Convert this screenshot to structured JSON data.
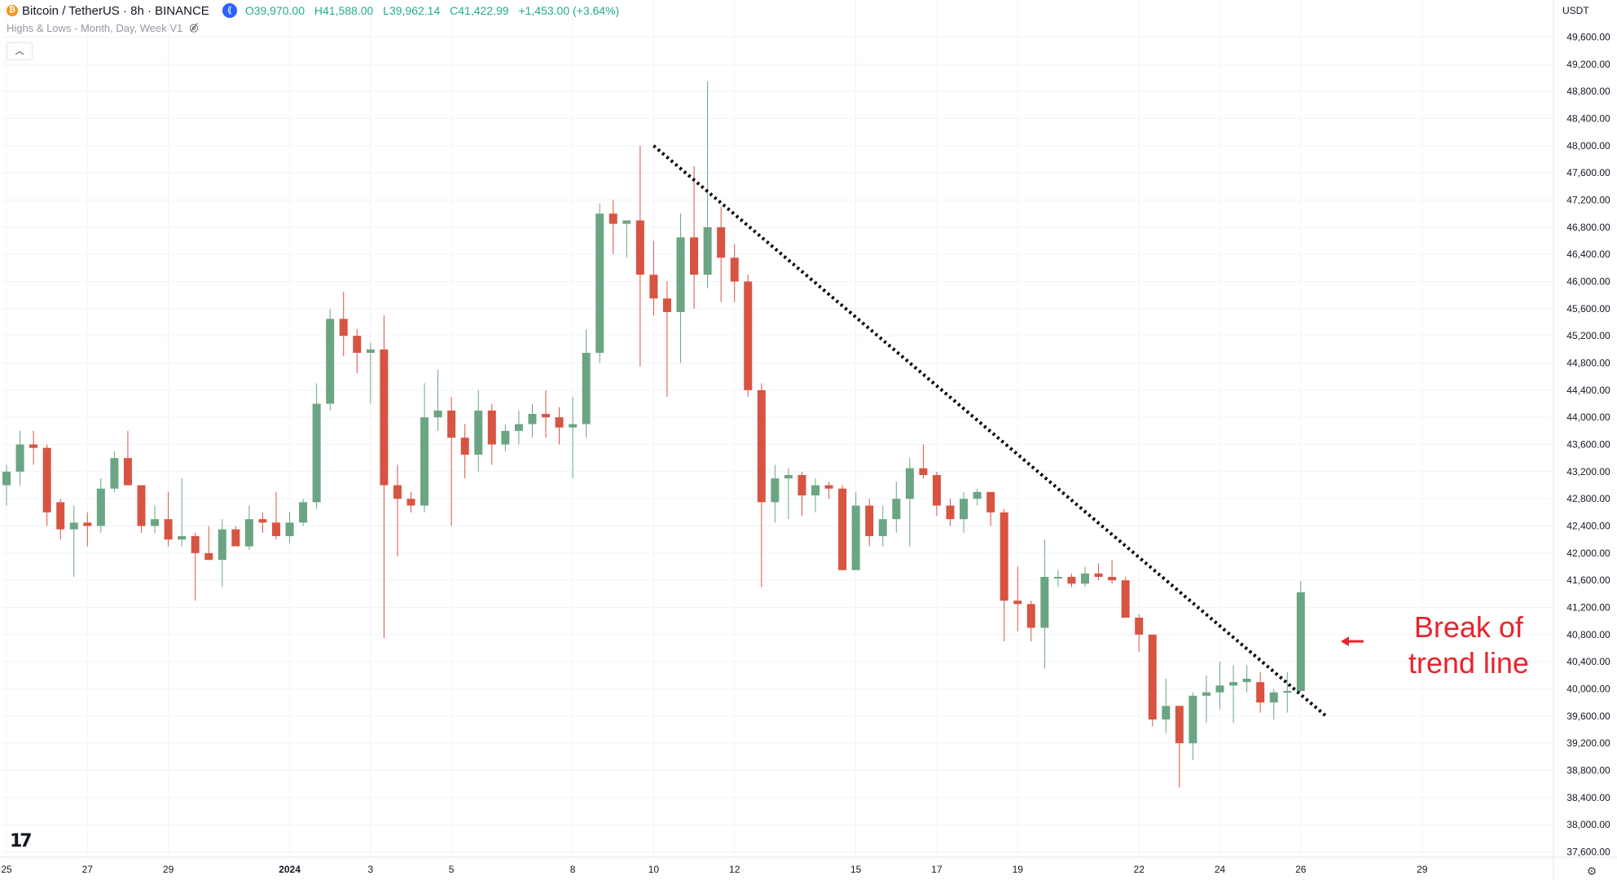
{
  "header": {
    "symbol": "Bitcoin / TetherUS · 8h · BINANCE",
    "open": "O39,970.00",
    "high": "H41,588.00",
    "low": "L39,962.14",
    "close": "C41,422.99",
    "change": "+1,453.00 (+3.64%)"
  },
  "indicator": {
    "label": "Highs & Lows - Month, Day, Week V1"
  },
  "currency": "USDT",
  "colors": {
    "up": "#6ba583",
    "down": "#d75442",
    "grid": "#f0f3fa",
    "annotation": "#e8242c"
  },
  "icons": {
    "coin": "bitcoin-icon",
    "live": "live-icon",
    "eye": "eye-crossed-icon",
    "collapse": "chevron-up-icon",
    "settings": "gear-icon",
    "logo": "tradingview-logo"
  },
  "chart_data": {
    "type": "candlestick",
    "title": "Bitcoin / TetherUS · 8h · BINANCE",
    "ylim": [
      37400,
      50000
    ],
    "y_ticks": [
      37600,
      38000,
      38400,
      38800,
      39200,
      39600,
      40000,
      40400,
      40800,
      41200,
      41600,
      42000,
      42400,
      42800,
      43200,
      43600,
      44000,
      44400,
      44800,
      45200,
      45600,
      46000,
      46400,
      46800,
      47200,
      47600,
      48000,
      48400,
      48800,
      49200,
      49600
    ],
    "y_tick_labels": [
      "37,600.00",
      "38,000.00",
      "38,400.00",
      "38,800.00",
      "39,200.00",
      "39,600.00",
      "40,000.00",
      "40,400.00",
      "40,800.00",
      "41,200.00",
      "41,600.00",
      "42,000.00",
      "42,400.00",
      "42,800.00",
      "43,200.00",
      "43,600.00",
      "44,000.00",
      "44,400.00",
      "44,800.00",
      "45,200.00",
      "45,600.00",
      "46,000.00",
      "46,400.00",
      "46,800.00",
      "47,200.00",
      "47,600.00",
      "48,000.00",
      "48,400.00",
      "48,800.00",
      "49,200.00",
      "49,600.00"
    ],
    "x_ticks": [
      {
        "label": "25",
        "bar": 0
      },
      {
        "label": "27",
        "bar": 6
      },
      {
        "label": "29",
        "bar": 12
      },
      {
        "label": "2024",
        "bar": 21
      },
      {
        "label": "3",
        "bar": 27
      },
      {
        "label": "5",
        "bar": 33
      },
      {
        "label": "8",
        "bar": 42
      },
      {
        "label": "10",
        "bar": 48
      },
      {
        "label": "12",
        "bar": 54
      },
      {
        "label": "15",
        "bar": 63
      },
      {
        "label": "17",
        "bar": 69
      },
      {
        "label": "19",
        "bar": 75
      },
      {
        "label": "22",
        "bar": 84
      },
      {
        "label": "24",
        "bar": 90
      },
      {
        "label": "26",
        "bar": 96
      },
      {
        "label": "29",
        "bar": 105
      }
    ],
    "candles": [
      {
        "o": 43000,
        "h": 43300,
        "l": 42700,
        "c": 43200
      },
      {
        "o": 43200,
        "h": 43800,
        "l": 43000,
        "c": 43600
      },
      {
        "o": 43600,
        "h": 43800,
        "l": 43300,
        "c": 43550
      },
      {
        "o": 43550,
        "h": 43600,
        "l": 42400,
        "c": 42600
      },
      {
        "o": 42750,
        "h": 42800,
        "l": 42200,
        "c": 42350
      },
      {
        "o": 42350,
        "h": 42700,
        "l": 41650,
        "c": 42450
      },
      {
        "o": 42450,
        "h": 42600,
        "l": 42100,
        "c": 42400
      },
      {
        "o": 42400,
        "h": 43100,
        "l": 42300,
        "c": 42950
      },
      {
        "o": 42950,
        "h": 43500,
        "l": 42900,
        "c": 43400
      },
      {
        "o": 43400,
        "h": 43800,
        "l": 43000,
        "c": 43000
      },
      {
        "o": 43000,
        "h": 43000,
        "l": 42300,
        "c": 42400
      },
      {
        "o": 42400,
        "h": 42700,
        "l": 42300,
        "c": 42500
      },
      {
        "o": 42500,
        "h": 42900,
        "l": 42100,
        "c": 42200
      },
      {
        "o": 42200,
        "h": 43100,
        "l": 42100,
        "c": 42250
      },
      {
        "o": 42250,
        "h": 42300,
        "l": 41300,
        "c": 42000
      },
      {
        "o": 42000,
        "h": 42400,
        "l": 41900,
        "c": 41900
      },
      {
        "o": 41900,
        "h": 42500,
        "l": 41500,
        "c": 42350
      },
      {
        "o": 42350,
        "h": 42400,
        "l": 42100,
        "c": 42100
      },
      {
        "o": 42100,
        "h": 42700,
        "l": 42050,
        "c": 42500
      },
      {
        "o": 42500,
        "h": 42600,
        "l": 42300,
        "c": 42450
      },
      {
        "o": 42450,
        "h": 42900,
        "l": 42200,
        "c": 42250
      },
      {
        "o": 42250,
        "h": 42600,
        "l": 42150,
        "c": 42450
      },
      {
        "o": 42450,
        "h": 42800,
        "l": 42400,
        "c": 42750
      },
      {
        "o": 42750,
        "h": 44500,
        "l": 42650,
        "c": 44200
      },
      {
        "o": 44200,
        "h": 45600,
        "l": 44100,
        "c": 45450
      },
      {
        "o": 45450,
        "h": 45850,
        "l": 44900,
        "c": 45200
      },
      {
        "o": 45200,
        "h": 45300,
        "l": 44650,
        "c": 44950
      },
      {
        "o": 44950,
        "h": 45100,
        "l": 44200,
        "c": 45000
      },
      {
        "o": 45000,
        "h": 45500,
        "l": 40750,
        "c": 43000
      },
      {
        "o": 43000,
        "h": 43300,
        "l": 41950,
        "c": 42800
      },
      {
        "o": 42800,
        "h": 42900,
        "l": 42600,
        "c": 42700
      },
      {
        "o": 42700,
        "h": 44500,
        "l": 42600,
        "c": 44000
      },
      {
        "o": 44000,
        "h": 44700,
        "l": 43800,
        "c": 44100
      },
      {
        "o": 44100,
        "h": 44300,
        "l": 42400,
        "c": 43700
      },
      {
        "o": 43700,
        "h": 43900,
        "l": 43100,
        "c": 43450
      },
      {
        "o": 43450,
        "h": 44400,
        "l": 43200,
        "c": 44100
      },
      {
        "o": 44100,
        "h": 44200,
        "l": 43300,
        "c": 43600
      },
      {
        "o": 43600,
        "h": 43900,
        "l": 43500,
        "c": 43800
      },
      {
        "o": 43800,
        "h": 44100,
        "l": 43600,
        "c": 43900
      },
      {
        "o": 43900,
        "h": 44200,
        "l": 43700,
        "c": 44050
      },
      {
        "o": 44050,
        "h": 44400,
        "l": 43700,
        "c": 44000
      },
      {
        "o": 44000,
        "h": 44150,
        "l": 43600,
        "c": 43850
      },
      {
        "o": 43850,
        "h": 44300,
        "l": 43100,
        "c": 43900
      },
      {
        "o": 43900,
        "h": 45300,
        "l": 43700,
        "c": 44950
      },
      {
        "o": 44950,
        "h": 47150,
        "l": 44800,
        "c": 47000
      },
      {
        "o": 47000,
        "h": 47200,
        "l": 46400,
        "c": 46850
      },
      {
        "o": 46850,
        "h": 46900,
        "l": 46350,
        "c": 46900
      },
      {
        "o": 46900,
        "h": 48000,
        "l": 44750,
        "c": 46100
      },
      {
        "o": 46100,
        "h": 46600,
        "l": 45500,
        "c": 45750
      },
      {
        "o": 45750,
        "h": 46000,
        "l": 44300,
        "c": 45550
      },
      {
        "o": 45550,
        "h": 47000,
        "l": 44800,
        "c": 46650
      },
      {
        "o": 46650,
        "h": 47700,
        "l": 45600,
        "c": 46100
      },
      {
        "o": 46100,
        "h": 48950,
        "l": 45900,
        "c": 46800
      },
      {
        "o": 46800,
        "h": 47100,
        "l": 45700,
        "c": 46350
      },
      {
        "o": 46350,
        "h": 46550,
        "l": 45700,
        "c": 46000
      },
      {
        "o": 46000,
        "h": 46100,
        "l": 44300,
        "c": 44400
      },
      {
        "o": 44400,
        "h": 44500,
        "l": 41500,
        "c": 42750
      },
      {
        "o": 42750,
        "h": 43300,
        "l": 42450,
        "c": 43100
      },
      {
        "o": 43100,
        "h": 43250,
        "l": 42500,
        "c": 43150
      },
      {
        "o": 43150,
        "h": 43200,
        "l": 42550,
        "c": 42850
      },
      {
        "o": 42850,
        "h": 43100,
        "l": 42600,
        "c": 43000
      },
      {
        "o": 43000,
        "h": 43050,
        "l": 42800,
        "c": 42950
      },
      {
        "o": 42950,
        "h": 43000,
        "l": 41750,
        "c": 41750
      },
      {
        "o": 41750,
        "h": 42900,
        "l": 41750,
        "c": 42700
      },
      {
        "o": 42700,
        "h": 42800,
        "l": 42100,
        "c": 42250
      },
      {
        "o": 42250,
        "h": 42700,
        "l": 42100,
        "c": 42500
      },
      {
        "o": 42500,
        "h": 43050,
        "l": 42300,
        "c": 42800
      },
      {
        "o": 42800,
        "h": 43400,
        "l": 42100,
        "c": 43250
      },
      {
        "o": 43250,
        "h": 43600,
        "l": 43100,
        "c": 43150
      },
      {
        "o": 43150,
        "h": 43200,
        "l": 42550,
        "c": 42700
      },
      {
        "o": 42700,
        "h": 42800,
        "l": 42400,
        "c": 42500
      },
      {
        "o": 42500,
        "h": 42900,
        "l": 42300,
        "c": 42800
      },
      {
        "o": 42800,
        "h": 42950,
        "l": 42700,
        "c": 42900
      },
      {
        "o": 42900,
        "h": 42900,
        "l": 42400,
        "c": 42600
      },
      {
        "o": 42600,
        "h": 42650,
        "l": 40700,
        "c": 41300
      },
      {
        "o": 41300,
        "h": 41800,
        "l": 40850,
        "c": 41250
      },
      {
        "o": 41250,
        "h": 41300,
        "l": 40700,
        "c": 40900
      },
      {
        "o": 40900,
        "h": 42200,
        "l": 40300,
        "c": 41650
      },
      {
        "o": 41650,
        "h": 41750,
        "l": 41500,
        "c": 41650
      },
      {
        "o": 41650,
        "h": 41700,
        "l": 41500,
        "c": 41550
      },
      {
        "o": 41550,
        "h": 41800,
        "l": 41500,
        "c": 41700
      },
      {
        "o": 41700,
        "h": 41850,
        "l": 41600,
        "c": 41650
      },
      {
        "o": 41650,
        "h": 41900,
        "l": 41550,
        "c": 41600
      },
      {
        "o": 41600,
        "h": 41650,
        "l": 41050,
        "c": 41050
      },
      {
        "o": 41050,
        "h": 41100,
        "l": 40550,
        "c": 40800
      },
      {
        "o": 40800,
        "h": 40800,
        "l": 39450,
        "c": 39550
      },
      {
        "o": 39550,
        "h": 40150,
        "l": 39350,
        "c": 39750
      },
      {
        "o": 39750,
        "h": 39750,
        "l": 38550,
        "c": 39200
      },
      {
        "o": 39200,
        "h": 39950,
        "l": 38950,
        "c": 39900
      },
      {
        "o": 39900,
        "h": 40200,
        "l": 39500,
        "c": 39950
      },
      {
        "o": 39950,
        "h": 40400,
        "l": 39700,
        "c": 40050
      },
      {
        "o": 40050,
        "h": 40350,
        "l": 39500,
        "c": 40100
      },
      {
        "o": 40100,
        "h": 40350,
        "l": 39950,
        "c": 40150
      },
      {
        "o": 40100,
        "h": 40250,
        "l": 39650,
        "c": 39800
      },
      {
        "o": 39800,
        "h": 40000,
        "l": 39550,
        "c": 39950
      },
      {
        "o": 39950,
        "h": 40250,
        "l": 39650,
        "c": 39970
      },
      {
        "o": 39970,
        "h": 41588,
        "l": 39962.14,
        "c": 41422.99
      }
    ],
    "trend_line": {
      "from": {
        "bar": 48,
        "price": 48000
      },
      "to": {
        "bar": 98,
        "price": 39580
      }
    },
    "annotation": {
      "text_line1": "Break of",
      "text_line2": "trend line",
      "bar": 98,
      "price": 40700
    }
  }
}
